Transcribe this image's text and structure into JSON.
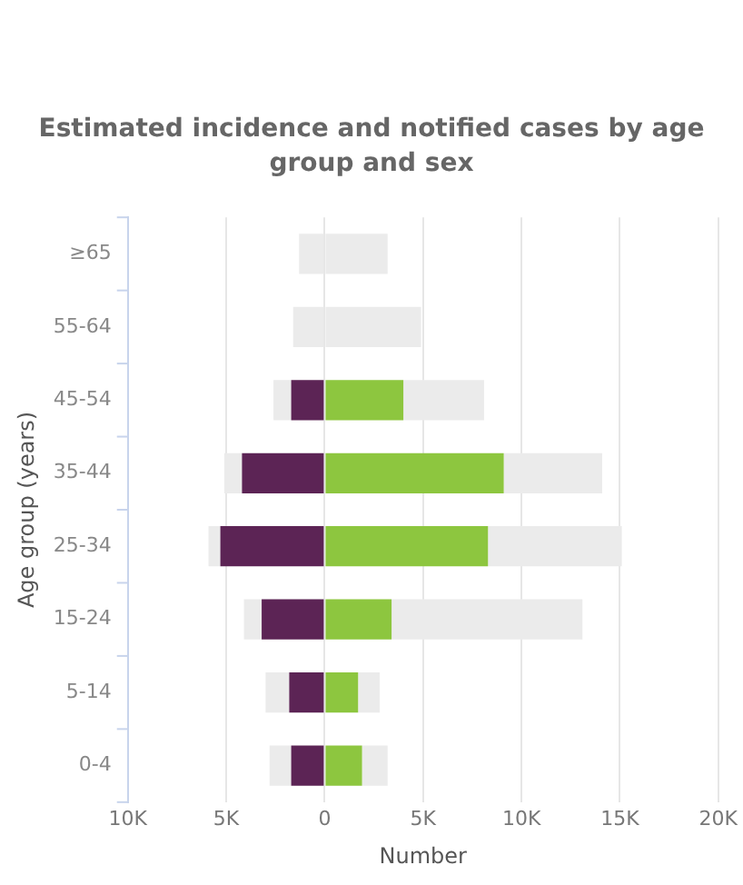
{
  "chart_data": {
    "type": "bar",
    "orientation": "horizontal",
    "stacked": true,
    "title": "Estimated incidence and notified cases by age group and sex",
    "xlabel": "Number",
    "ylabel": "Age group (years)",
    "categories": [
      "≥65",
      "55-64",
      "45-54",
      "35-44",
      "25-34",
      "15-24",
      "5-14",
      "0-4"
    ],
    "series": [
      {
        "color": "#5c2455",
        "values": [
          null,
          null,
          -1700,
          -4200,
          -5300,
          -3200,
          -1800,
          -1700
        ]
      },
      {
        "color": "#8dc63f",
        "values": [
          null,
          null,
          4000,
          9100,
          8300,
          3400,
          1700,
          1900
        ]
      },
      {
        "color": "#ebebeb",
        "values": [
          -1300,
          -1600,
          -900,
          -900,
          -600,
          -900,
          -1200,
          -1100
        ]
      },
      {
        "color": "#ebebeb",
        "values": [
          3200,
          4900,
          4100,
          5000,
          6800,
          9700,
          1100,
          1300
        ]
      }
    ],
    "xlim": [
      -10000,
      20000
    ],
    "xticks": [
      {
        "value": -10000,
        "label": "10K"
      },
      {
        "value": -5000,
        "label": "5K"
      },
      0,
      {
        "value": 5000,
        "label": "5K"
      },
      {
        "value": 10000,
        "label": "10K"
      },
      {
        "value": 15000,
        "label": "15K"
      },
      {
        "value": 20000,
        "label": "20K"
      }
    ],
    "grid": "x",
    "legend": false
  }
}
